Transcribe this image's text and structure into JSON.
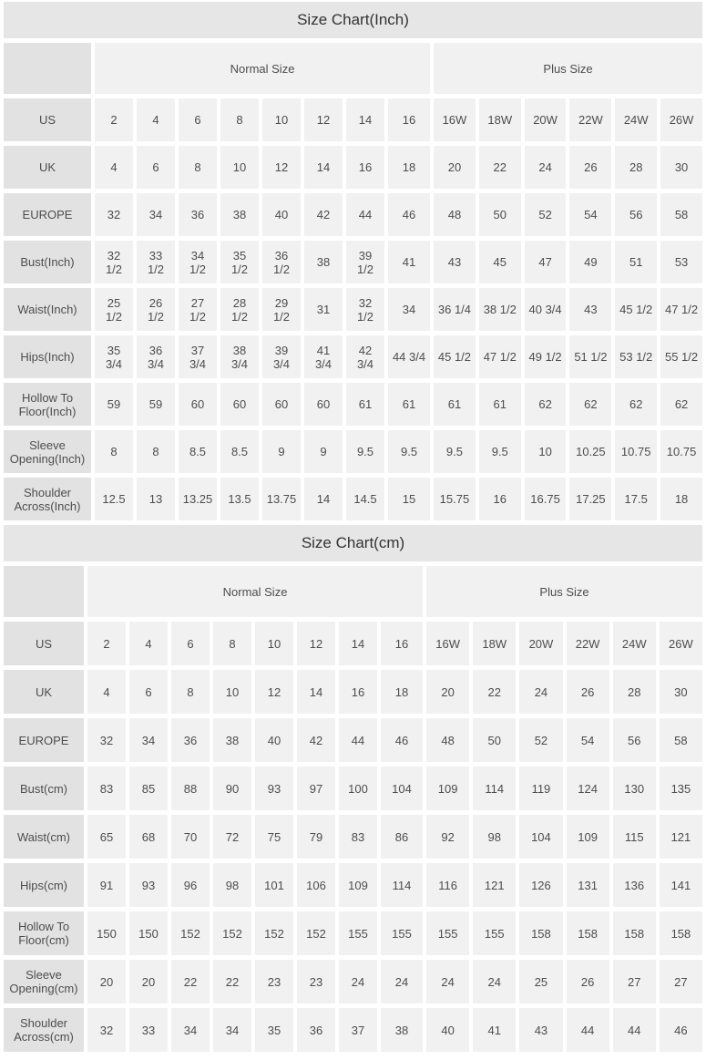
{
  "colors": {
    "title_bg": "#e6e6e6",
    "row_label_bg": "#e2e2e2",
    "cell_bg": "#f1f1f1",
    "text": "#4d4d4d"
  },
  "chart_data": [
    {
      "type": "table",
      "title": "Size Chart(Inch)",
      "column_groups": [
        {
          "label": "",
          "span": 1
        },
        {
          "label": "Normal Size",
          "span": 8
        },
        {
          "label": "Plus Size",
          "span": 6
        }
      ],
      "rows": [
        {
          "label": "US",
          "values": [
            "2",
            "4",
            "6",
            "8",
            "10",
            "12",
            "14",
            "16",
            "16W",
            "18W",
            "20W",
            "22W",
            "24W",
            "26W"
          ]
        },
        {
          "label": "UK",
          "values": [
            "4",
            "6",
            "8",
            "10",
            "12",
            "14",
            "16",
            "18",
            "20",
            "22",
            "24",
            "26",
            "28",
            "30"
          ]
        },
        {
          "label": "EUROPE",
          "values": [
            "32",
            "34",
            "36",
            "38",
            "40",
            "42",
            "44",
            "46",
            "48",
            "50",
            "52",
            "54",
            "56",
            "58"
          ]
        },
        {
          "label": "Bust(Inch)",
          "values": [
            "32\n1/2",
            "33\n1/2",
            "34\n1/2",
            "35\n1/2",
            "36\n1/2",
            "38",
            "39\n1/2",
            "41",
            "43",
            "45",
            "47",
            "49",
            "51",
            "53"
          ]
        },
        {
          "label": "Waist(Inch)",
          "values": [
            "25\n1/2",
            "26\n1/2",
            "27\n1/2",
            "28\n1/2",
            "29\n1/2",
            "31",
            "32\n1/2",
            "34",
            "36 1/4",
            "38 1/2",
            "40 3/4",
            "43",
            "45 1/2",
            "47 1/2"
          ]
        },
        {
          "label": "Hips(Inch)",
          "values": [
            "35\n3/4",
            "36\n3/4",
            "37\n3/4",
            "38\n3/4",
            "39\n3/4",
            "41\n3/4",
            "42\n3/4",
            "44 3/4",
            "45 1/2",
            "47 1/2",
            "49 1/2",
            "51 1/2",
            "53 1/2",
            "55 1/2"
          ]
        },
        {
          "label": "Hollow To Floor(Inch)",
          "values": [
            "59",
            "59",
            "60",
            "60",
            "60",
            "60",
            "61",
            "61",
            "61",
            "61",
            "62",
            "62",
            "62",
            "62"
          ]
        },
        {
          "label": "Sleeve Opening(Inch)",
          "values": [
            "8",
            "8",
            "8.5",
            "8.5",
            "9",
            "9",
            "9.5",
            "9.5",
            "9.5",
            "9.5",
            "10",
            "10.25",
            "10.75",
            "10.75"
          ]
        },
        {
          "label": "Shoulder Across(Inch)",
          "values": [
            "12.5",
            "13",
            "13.25",
            "13.5",
            "13.75",
            "14",
            "14.5",
            "15",
            "15.75",
            "16",
            "16.75",
            "17.25",
            "17.5",
            "18"
          ]
        }
      ]
    },
    {
      "type": "table",
      "title": "Size Chart(cm)",
      "column_groups": [
        {
          "label": "",
          "span": 1
        },
        {
          "label": "Normal Size",
          "span": 8
        },
        {
          "label": "Plus Size",
          "span": 6
        }
      ],
      "rows": [
        {
          "label": "US",
          "values": [
            "2",
            "4",
            "6",
            "8",
            "10",
            "12",
            "14",
            "16",
            "16W",
            "18W",
            "20W",
            "22W",
            "24W",
            "26W"
          ]
        },
        {
          "label": "UK",
          "values": [
            "4",
            "6",
            "8",
            "10",
            "12",
            "14",
            "16",
            "18",
            "20",
            "22",
            "24",
            "26",
            "28",
            "30"
          ]
        },
        {
          "label": "EUROPE",
          "values": [
            "32",
            "34",
            "36",
            "38",
            "40",
            "42",
            "44",
            "46",
            "48",
            "50",
            "52",
            "54",
            "56",
            "58"
          ]
        },
        {
          "label": "Bust(cm)",
          "values": [
            "83",
            "85",
            "88",
            "90",
            "93",
            "97",
            "100",
            "104",
            "109",
            "114",
            "119",
            "124",
            "130",
            "135"
          ]
        },
        {
          "label": "Waist(cm)",
          "values": [
            "65",
            "68",
            "70",
            "72",
            "75",
            "79",
            "83",
            "86",
            "92",
            "98",
            "104",
            "109",
            "115",
            "121"
          ]
        },
        {
          "label": "Hips(cm)",
          "values": [
            "91",
            "93",
            "96",
            "98",
            "101",
            "106",
            "109",
            "114",
            "116",
            "121",
            "126",
            "131",
            "136",
            "141"
          ]
        },
        {
          "label": "Hollow To Floor(cm)",
          "values": [
            "150",
            "150",
            "152",
            "152",
            "152",
            "152",
            "155",
            "155",
            "155",
            "155",
            "158",
            "158",
            "158",
            "158"
          ]
        },
        {
          "label": "Sleeve Opening(cm)",
          "values": [
            "20",
            "20",
            "22",
            "22",
            "23",
            "23",
            "24",
            "24",
            "24",
            "24",
            "25",
            "26",
            "27",
            "27"
          ]
        },
        {
          "label": "Shoulder Across(cm)",
          "values": [
            "32",
            "33",
            "34",
            "34",
            "35",
            "36",
            "37",
            "38",
            "40",
            "41",
            "43",
            "44",
            "44",
            "46"
          ]
        }
      ]
    }
  ]
}
